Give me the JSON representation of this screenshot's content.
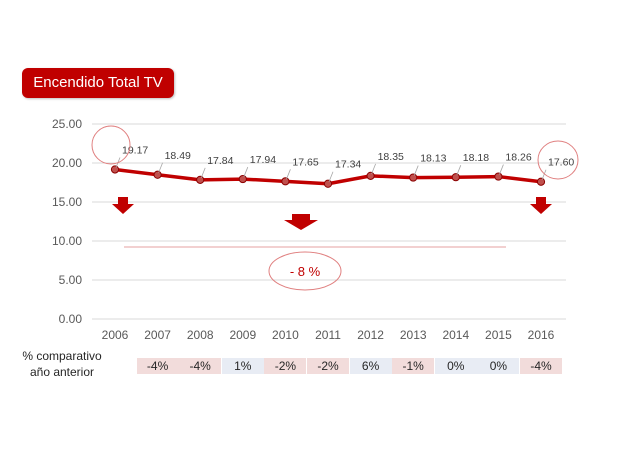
{
  "title": "Encendido Total TV",
  "chart_data": {
    "type": "line",
    "title": "Encendido Total TV",
    "x": [
      "2006",
      "2007",
      "2008",
      "2009",
      "2010",
      "2011",
      "2012",
      "2013",
      "2014",
      "2015",
      "2016"
    ],
    "series": [
      {
        "values": [
          19.17,
          18.49,
          17.84,
          17.94,
          17.65,
          17.34,
          18.35,
          18.13,
          18.18,
          18.26,
          17.6
        ]
      }
    ],
    "y_ticks": [
      "25.00",
      "20.00",
      "15.00",
      "10.00",
      "5.00",
      "0.00"
    ],
    "data_labels": [
      "19.17",
      "18.49",
      "17.84",
      "17.94",
      "17.65",
      "17.34",
      "18.35",
      "18.13",
      "18.18",
      "18.26",
      "17.60"
    ],
    "ylim": [
      0,
      25
    ],
    "grid": true,
    "legend": "none",
    "annotation": "- 8 %",
    "line_color": "#c00000",
    "accent_color": "#c00000"
  },
  "comparison": {
    "label_line1": "% comparativo",
    "label_line2": "año anterior",
    "values": [
      "-4%",
      "-4%",
      "1%",
      "-2%",
      "-2%",
      "6%",
      "-1%",
      "0%",
      "0%",
      "-4%"
    ],
    "colors": [
      "#f2dcdb",
      "#f2dcdb",
      "#e8ecf4",
      "#f2dcdb",
      "#f2dcdb",
      "#e8ecf4",
      "#f2dcdb",
      "#e8ecf4",
      "#e8ecf4",
      "#f2dcdb"
    ]
  }
}
